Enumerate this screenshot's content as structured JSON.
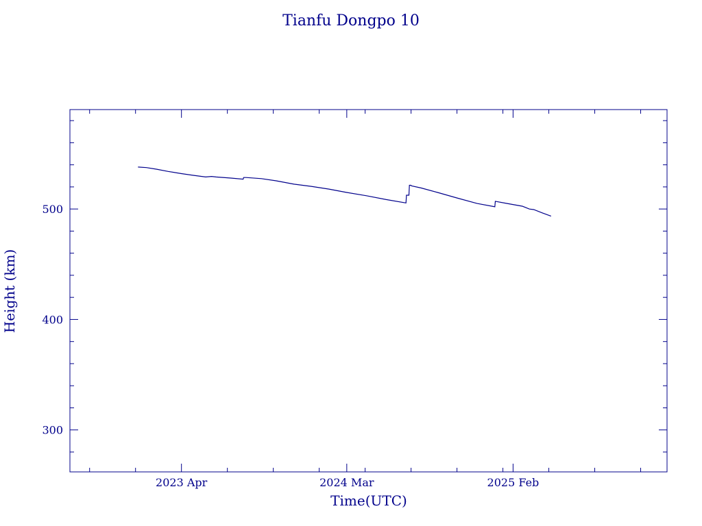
{
  "chart_data": {
    "type": "line",
    "title": "Tianfu Dongpo 10",
    "xlabel": "Time(UTC)",
    "ylabel": "Height (km)",
    "color": "#00008b",
    "ylim": [
      262,
      590
    ],
    "xlim": [
      "2022-08-18",
      "2025-12-10"
    ],
    "x_ticks": [
      {
        "date": "2023-04-01",
        "label": "2023 Apr"
      },
      {
        "date": "2024-03-01",
        "label": "2024 Mar"
      },
      {
        "date": "2025-02-01",
        "label": "2025 Feb"
      }
    ],
    "y_ticks": [
      300,
      400,
      500
    ],
    "grid": false,
    "series": [
      {
        "x": [
          "2023-01-03",
          "2023-01-20",
          "2023-02-10",
          "2023-03-05",
          "2023-04-01",
          "2023-04-25",
          "2023-05-20",
          "2023-06-01",
          "2023-06-10",
          "2023-07-10",
          "2023-08-04",
          "2023-08-05",
          "2023-08-10",
          "2023-09-10",
          "2023-10-10",
          "2023-11-15",
          "2023-12-20",
          "2024-01-25",
          "2024-03-01",
          "2024-04-10",
          "2024-05-20",
          "2024-06-29",
          "2024-06-30",
          "2024-07-05",
          "2024-07-06",
          "2024-07-09",
          "2024-07-10",
          "2024-07-30",
          "2024-09-01",
          "2024-10-10",
          "2024-11-20",
          "2024-12-26",
          "2024-12-27",
          "2025-01-20",
          "2025-02-20",
          "2025-03-06",
          "2025-03-15",
          "2025-04-01",
          "2025-04-19"
        ],
        "y": [
          538,
          537.5,
          536,
          534,
          532,
          530.5,
          529,
          529.5,
          529,
          528,
          527,
          528.5,
          528.5,
          527.5,
          525.5,
          522.5,
          520.5,
          518,
          515,
          512,
          508.5,
          505.5,
          512.5,
          512.5,
          521.5,
          521.5,
          521,
          519,
          515,
          510,
          505,
          502,
          507,
          505,
          502.5,
          500,
          499.5,
          496.5,
          493.5
        ]
      }
    ]
  }
}
